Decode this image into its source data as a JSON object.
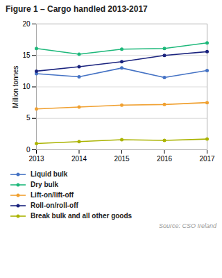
{
  "chart_data": {
    "type": "line",
    "title": "Figure 1 – Cargo handled 2013-2017",
    "ylabel": "Million tonnes",
    "source": "Source: CSO Ireland",
    "x": [
      2013,
      2014,
      2015,
      2016,
      2017
    ],
    "series": [
      {
        "name": "Liquid bulk",
        "color": "#4472c4",
        "marker": "circle",
        "values": [
          12.1,
          11.6,
          13.0,
          11.5,
          12.6
        ]
      },
      {
        "name": "Dry bulk",
        "color": "#1db87a",
        "marker": "circle",
        "values": [
          16.1,
          15.2,
          16.0,
          16.1,
          17.0
        ]
      },
      {
        "name": "Lift-on/lift-off",
        "color": "#f0a030",
        "marker": "circle",
        "values": [
          6.5,
          6.8,
          7.1,
          7.2,
          7.5
        ]
      },
      {
        "name": "Roll-on/roll-off",
        "color": "#1a237e",
        "marker": "circle",
        "values": [
          12.5,
          13.2,
          14.0,
          15.0,
          15.6
        ]
      },
      {
        "name": "Break bulk and all other goods",
        "color": "#aab300",
        "marker": "circle",
        "values": [
          1.0,
          1.3,
          1.6,
          1.5,
          1.7
        ]
      }
    ],
    "xlim": [
      2013,
      2017
    ],
    "xticks": [
      2013,
      2014,
      2015,
      2016,
      2017
    ],
    "ylim": [
      0,
      20
    ],
    "yticks": [
      0,
      5,
      10,
      15,
      20
    ],
    "grid": true,
    "legend": "below"
  }
}
